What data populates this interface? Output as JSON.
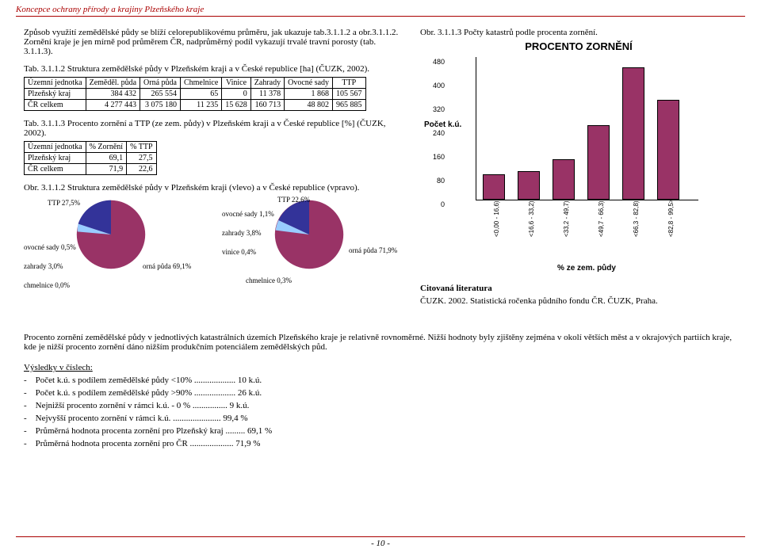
{
  "header": "Koncepce ochrany přírody a krajiny Plzeňského kraje",
  "intro": {
    "p1": "Způsob využití zemědělské půdy se blíží celorepublikovému průměru, jak ukazuje tab.3.1.1.2 a obr.3.1.1.2. Zornění kraje je jen mírně pod průměrem ČR, nadprůměrný podíl vykazují trvalé travní porosty (tab. 3.1.1.3).",
    "tab312cap": "Tab. 3.1.1.2 Struktura zemědělské půdy v Plzeňském kraji a v České republice [ha] (ČUZK, 2002)."
  },
  "table1": {
    "headers": [
      "Územní jednotka",
      "Zeměděl. půda",
      "Orná půda",
      "Chmelnice",
      "Vinice",
      "Zahrady",
      "Ovocné sady",
      "TTP"
    ],
    "rows": [
      [
        "Plzeňský kraj",
        "384 432",
        "265 554",
        "65",
        "0",
        "11 378",
        "1 868",
        "105 567"
      ],
      [
        "ČR celkem",
        "4 277 443",
        "3 075 180",
        "11 235",
        "15 628",
        "160 713",
        "48 802",
        "965 885"
      ]
    ]
  },
  "tab313cap": "Tab. 3.1.1.3 Procento zornění a TTP (ze zem. půdy) v Plzeňském kraji a v České republice [%] (ČUZK, 2002).",
  "table2": {
    "headers": [
      "Územní jednotka",
      "% Zornění",
      "% TTP"
    ],
    "rows": [
      [
        "Plzeňský kraj",
        "69,1",
        "27,5"
      ],
      [
        "ČR celkem",
        "71,9",
        "22,6"
      ]
    ]
  },
  "obr312cap": "Obr. 3.1.1.2 Struktura zemědělské půdy v Plzeňském kraji (vlevo) a v České republice (vpravo).",
  "pie_left": {
    "ttp": "TTP\n27,5%",
    "ovocne": "ovocné sady\n0,5%",
    "zahrady": "zahrady\n3,0%",
    "chmelnice": "chmelnice\n0,0%",
    "orna": "orná půda\n69,1%",
    "colors": {
      "orna": "#993366",
      "ttp": "#333399",
      "ovocne": "#ffff99",
      "zahrady": "#99ccff",
      "chmelnice": "#660066"
    }
  },
  "pie_right": {
    "ttp": "TTP\n22,6%",
    "ovocne": "ovocné sady\n1,1%",
    "zahrady": "zahrady\n3,8%",
    "vinice": "vinice\n0,4%",
    "chmelnice": "chmelnice\n0,3%",
    "orna": "orná půda\n71,9%"
  },
  "obr313cap": "Obr. 3.1.1.3 Počty katastrů podle procenta zornění.",
  "barchart": {
    "title": "PROCENTO ZORNĚNÍ",
    "ylabel": "Počet k.ú.",
    "xlabel": "% ze zem. půdy",
    "ymax": 480,
    "yticks": [
      0,
      80,
      160,
      240,
      320,
      400,
      480
    ],
    "categories": [
      "<0,00 - 16,6)",
      "<16,6 - 33,2)",
      "<33,2 - 49,7)",
      "<49,7 - 66,3)",
      "<66,3 - 82,8)",
      "<82,8 - 99,5>"
    ],
    "values": [
      80,
      90,
      130,
      245,
      440,
      330
    ],
    "bar_color": "#993366"
  },
  "citations": {
    "title": "Citovaná literatura",
    "line": "ČUZK. 2002. Statistická ročenka půdního fondu ČR. ČUZK, Praha."
  },
  "paragraph2": "Procento zornění zemědělské půdy v jednotlivých katastrálních územích Plzeňského kraje je relativně rovnoměrné. Nižší hodnoty byly zjištěny zejména v okolí větších měst a v okrajových partiích kraje, kde je nižší procento zornění dáno nižším produkčním potenciálem zemědělských půd.",
  "results": {
    "title": "Výsledky v číslech:",
    "items": [
      {
        "label": "Počet k.ú. s podílem zemědělské půdy <10%",
        "value": "10 k.ú."
      },
      {
        "label": "Počet k.ú. s podílem zemědělské půdy >90%",
        "value": "26 k.ú."
      },
      {
        "label": "Nejnižší procento zornění v rámci k.ú. - 0 %",
        "value": "9 k.ú."
      },
      {
        "label": "Nejvyšší procento zornění v rámci k.ú.",
        "value": "99,4 %"
      },
      {
        "label": "Průměrná hodnota procenta zornění pro Plzeňský kraj",
        "value": "69,1 %"
      },
      {
        "label": "Průměrná hodnota procenta zornění pro ČR",
        "value": "71,9 %"
      }
    ]
  },
  "page_num": "- 10 -"
}
